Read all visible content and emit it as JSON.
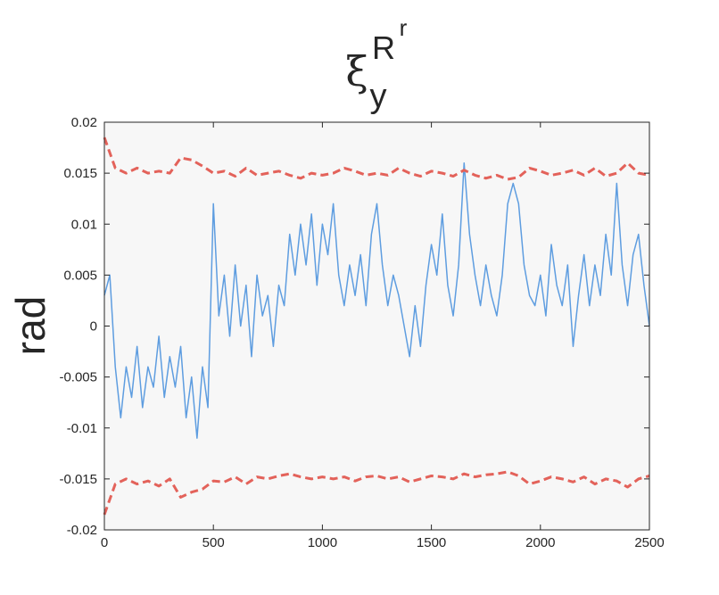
{
  "chart_data": {
    "type": "line",
    "title": {
      "base": "ξ",
      "sub": "y",
      "sup": "R",
      "sup_sup": "r"
    },
    "y_label": "rad",
    "xlim": [
      0,
      2500
    ],
    "xticks": [
      0,
      500,
      1000,
      1500,
      2000,
      2500
    ],
    "ylim": [
      -0.02,
      0.02
    ],
    "yticks": [
      -0.02,
      -0.015,
      -0.01,
      -0.005,
      0,
      0.005,
      0.01,
      0.015,
      0.02
    ],
    "grid": false,
    "series": [
      {
        "color": "#5e9de0",
        "dash": false,
        "x": [
          0,
          25,
          50,
          75,
          100,
          125,
          150,
          175,
          200,
          225,
          250,
          275,
          300,
          325,
          350,
          375,
          400,
          425,
          450,
          475,
          500,
          525,
          550,
          575,
          600,
          625,
          650,
          675,
          700,
          725,
          750,
          775,
          800,
          825,
          850,
          875,
          900,
          925,
          950,
          975,
          1000,
          1025,
          1050,
          1075,
          1100,
          1125,
          1150,
          1175,
          1200,
          1225,
          1250,
          1275,
          1300,
          1325,
          1350,
          1375,
          1400,
          1425,
          1450,
          1475,
          1500,
          1525,
          1550,
          1575,
          1600,
          1625,
          1650,
          1675,
          1700,
          1725,
          1750,
          1775,
          1800,
          1825,
          1850,
          1875,
          1900,
          1925,
          1950,
          1975,
          2000,
          2025,
          2050,
          2075,
          2100,
          2125,
          2150,
          2175,
          2200,
          2225,
          2250,
          2275,
          2300,
          2325,
          2350,
          2375,
          2400,
          2425,
          2450,
          2475,
          2500
        ],
        "values": [
          0.003,
          0.005,
          -0.004,
          -0.009,
          -0.004,
          -0.007,
          -0.002,
          -0.008,
          -0.004,
          -0.006,
          -0.001,
          -0.007,
          -0.003,
          -0.006,
          -0.002,
          -0.009,
          -0.005,
          -0.011,
          -0.004,
          -0.008,
          0.012,
          0.001,
          0.005,
          -0.001,
          0.006,
          0.0,
          0.004,
          -0.003,
          0.005,
          0.001,
          0.003,
          -0.002,
          0.004,
          0.002,
          0.009,
          0.005,
          0.01,
          0.006,
          0.011,
          0.004,
          0.01,
          0.007,
          0.012,
          0.005,
          0.002,
          0.006,
          0.003,
          0.007,
          0.002,
          0.009,
          0.012,
          0.006,
          0.002,
          0.005,
          0.003,
          0.0,
          -0.003,
          0.002,
          -0.002,
          0.004,
          0.008,
          0.005,
          0.011,
          0.004,
          0.001,
          0.006,
          0.016,
          0.009,
          0.005,
          0.002,
          0.006,
          0.003,
          0.001,
          0.005,
          0.012,
          0.014,
          0.012,
          0.006,
          0.003,
          0.002,
          0.005,
          0.001,
          0.008,
          0.004,
          0.002,
          0.006,
          -0.002,
          0.003,
          0.007,
          0.002,
          0.006,
          0.003,
          0.009,
          0.005,
          0.014,
          0.006,
          0.002,
          0.007,
          0.009,
          0.004,
          0.0
        ]
      },
      {
        "color": "#e3625a",
        "dash": true,
        "x": [
          0,
          50,
          100,
          150,
          200,
          250,
          300,
          350,
          400,
          450,
          500,
          550,
          600,
          650,
          700,
          750,
          800,
          850,
          900,
          950,
          1000,
          1050,
          1100,
          1150,
          1200,
          1250,
          1300,
          1350,
          1400,
          1450,
          1500,
          1550,
          1600,
          1650,
          1700,
          1750,
          1800,
          1850,
          1900,
          1950,
          2000,
          2050,
          2100,
          2150,
          2200,
          2250,
          2300,
          2350,
          2400,
          2450,
          2500
        ],
        "values": [
          0.0185,
          0.0155,
          0.015,
          0.0155,
          0.015,
          0.0152,
          0.015,
          0.0165,
          0.0163,
          0.0157,
          0.015,
          0.0152,
          0.0147,
          0.0155,
          0.0148,
          0.015,
          0.0152,
          0.0148,
          0.0145,
          0.015,
          0.0148,
          0.015,
          0.0155,
          0.0152,
          0.0148,
          0.015,
          0.0148,
          0.0155,
          0.015,
          0.0147,
          0.0152,
          0.015,
          0.0147,
          0.0153,
          0.0148,
          0.0145,
          0.0148,
          0.0144,
          0.0146,
          0.0155,
          0.0152,
          0.0148,
          0.015,
          0.0153,
          0.0148,
          0.0155,
          0.0147,
          0.015,
          0.016,
          0.015,
          0.0148
        ]
      },
      {
        "color": "#e3625a",
        "dash": true,
        "x": [
          0,
          50,
          100,
          150,
          200,
          250,
          300,
          350,
          400,
          450,
          500,
          550,
          600,
          650,
          700,
          750,
          800,
          850,
          900,
          950,
          1000,
          1050,
          1100,
          1150,
          1200,
          1250,
          1300,
          1350,
          1400,
          1450,
          1500,
          1550,
          1600,
          1650,
          1700,
          1750,
          1800,
          1850,
          1900,
          1950,
          2000,
          2050,
          2100,
          2150,
          2200,
          2250,
          2300,
          2350,
          2400,
          2450,
          2500
        ],
        "values": [
          -0.0185,
          -0.0155,
          -0.015,
          -0.0155,
          -0.0152,
          -0.0157,
          -0.015,
          -0.0168,
          -0.0163,
          -0.016,
          -0.0152,
          -0.0153,
          -0.0148,
          -0.0155,
          -0.0148,
          -0.015,
          -0.0147,
          -0.0145,
          -0.0148,
          -0.015,
          -0.0148,
          -0.015,
          -0.0148,
          -0.0152,
          -0.0148,
          -0.0147,
          -0.015,
          -0.0148,
          -0.0153,
          -0.015,
          -0.0147,
          -0.0148,
          -0.015,
          -0.0145,
          -0.0148,
          -0.0146,
          -0.0145,
          -0.0143,
          -0.0147,
          -0.0155,
          -0.0152,
          -0.0148,
          -0.015,
          -0.0153,
          -0.0148,
          -0.0155,
          -0.015,
          -0.0152,
          -0.0158,
          -0.015,
          -0.0147
        ]
      }
    ]
  }
}
